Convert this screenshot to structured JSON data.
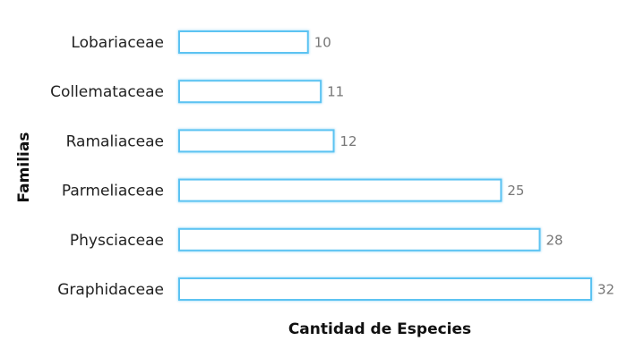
{
  "chart_data": {
    "type": "bar",
    "orientation": "horizontal",
    "x_label": "Cantidad de Especies",
    "y_label": "Familias",
    "categories": [
      "Lobariaceae",
      "Collemataceae",
      "Ramaliaceae",
      "Parmeliaceae",
      "Physciaceae",
      "Graphidaceae"
    ],
    "values": [
      10,
      11,
      12,
      25,
      28,
      32
    ],
    "color": "#5cc3f2"
  }
}
